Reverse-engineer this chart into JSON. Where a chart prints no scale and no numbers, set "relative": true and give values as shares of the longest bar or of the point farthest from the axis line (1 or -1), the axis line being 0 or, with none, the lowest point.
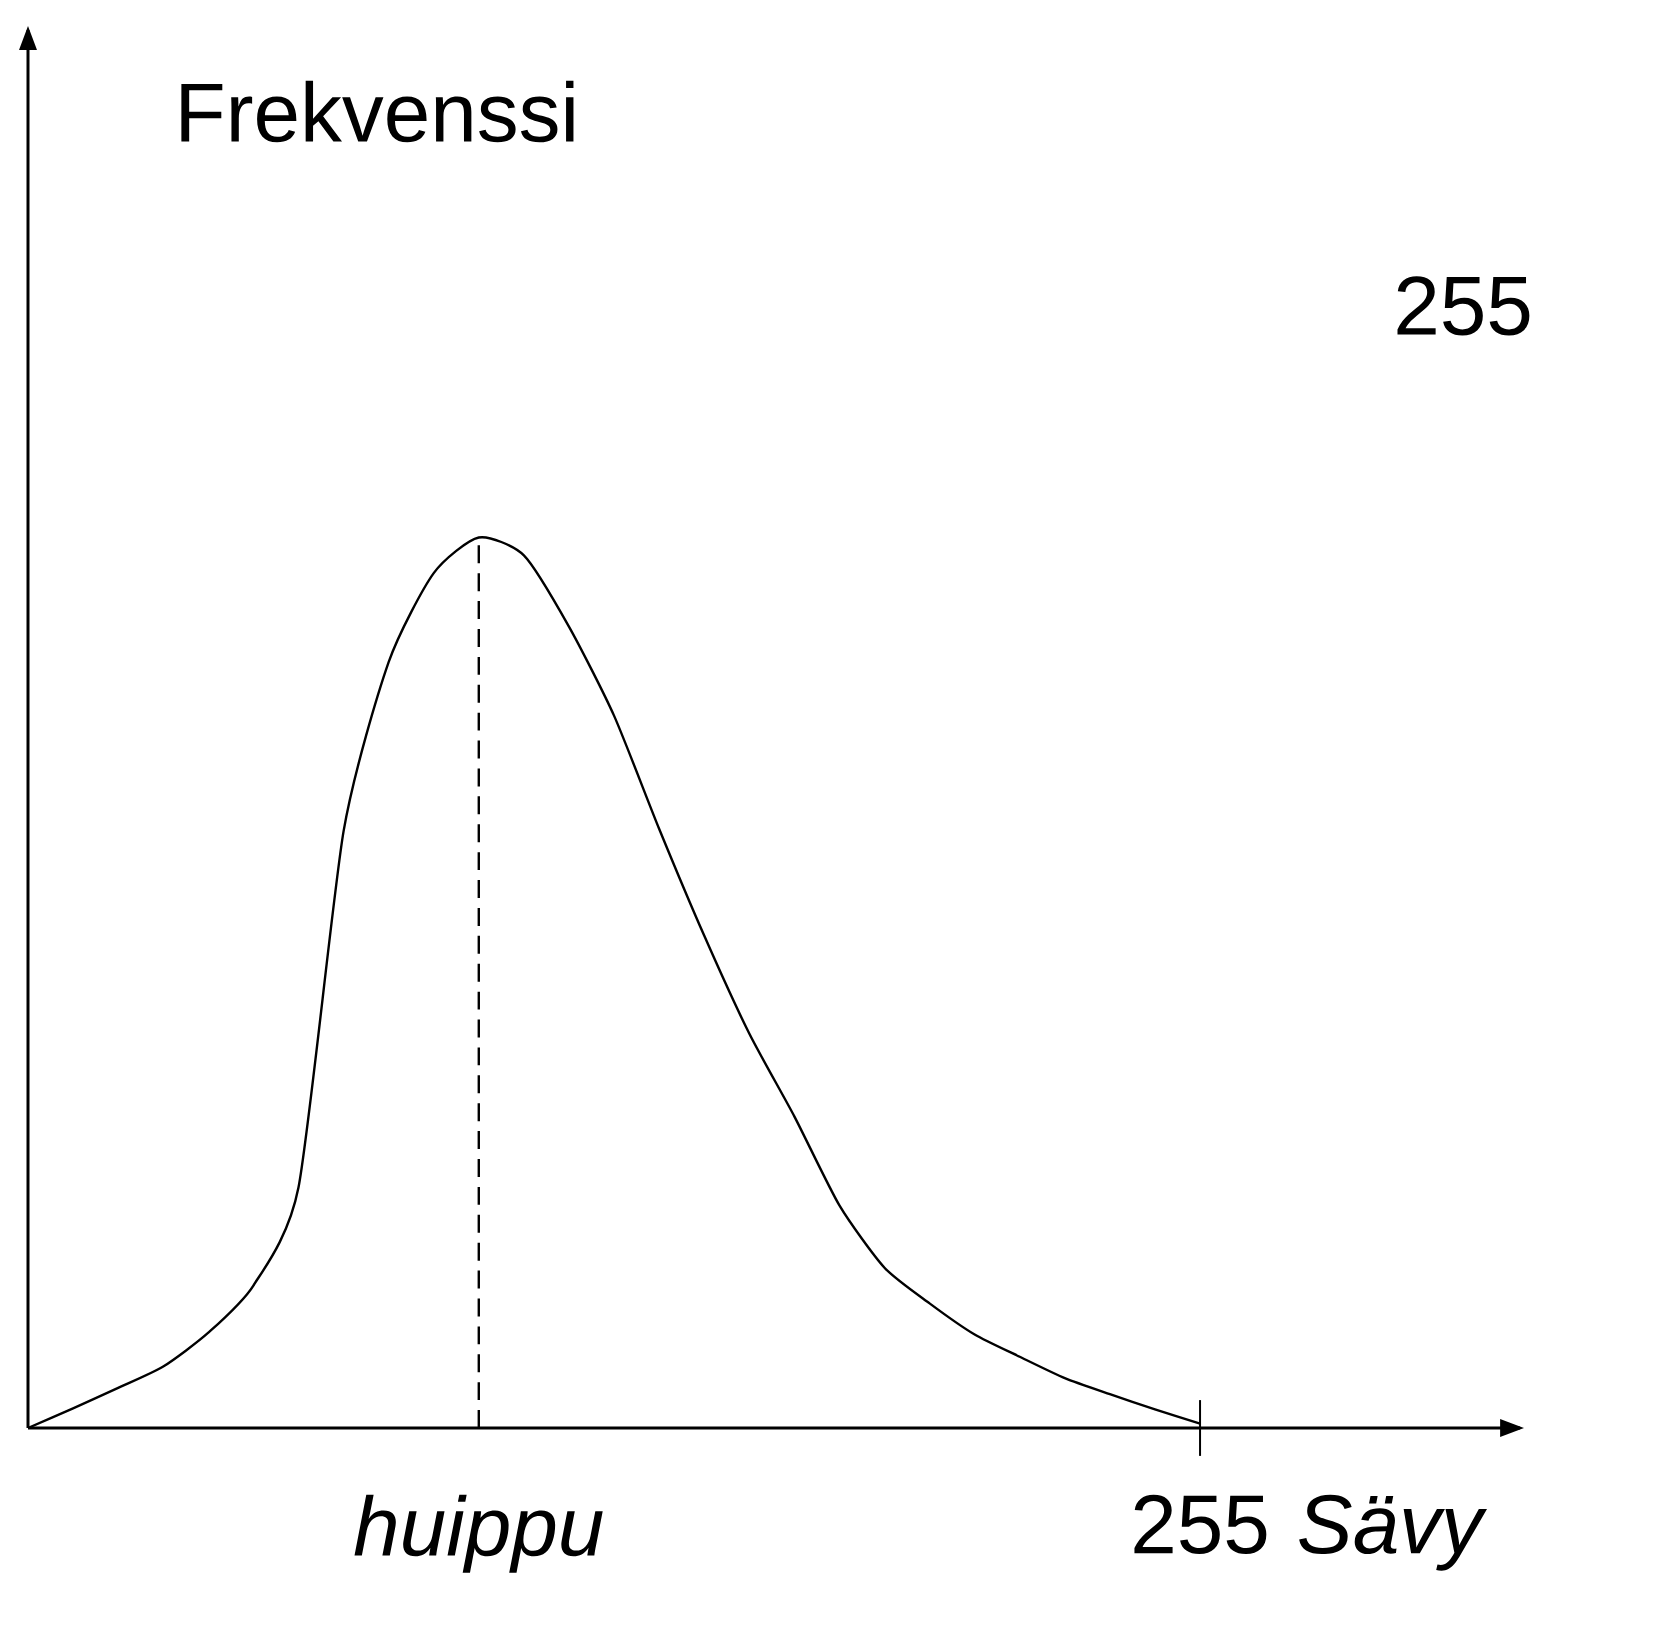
{
  "chart_data": {
    "type": "line",
    "relative": true,
    "xlabel": "Sävy",
    "ylabel": "Frekvenssi",
    "categories": [
      null,
      null,
      null,
      null,
      null,
      null,
      null,
      null,
      null,
      null,
      null,
      null,
      null,
      null,
      null,
      null,
      null,
      null,
      null,
      null,
      null,
      null,
      null,
      null,
      null,
      null,
      null
    ],
    "series": [
      {
        "color": "#000000",
        "values": [
          0,
          0.022,
          0.045,
          0.069,
          0.107,
          0.16,
          0.27,
          0.67,
          0.86,
          0.96,
          1,
          0.98,
          0.9,
          0.8,
          0.673,
          0.553,
          0.443,
          0.35,
          0.25,
          0.18,
          0.14,
          0.105,
          0.08,
          0.056,
          0.038,
          0.021,
          0.005
        ]
      }
    ],
    "annotations": [
      "255",
      "255",
      "*huippu*"
    ],
    "marker": "none",
    "line_style": "solid"
  }
}
